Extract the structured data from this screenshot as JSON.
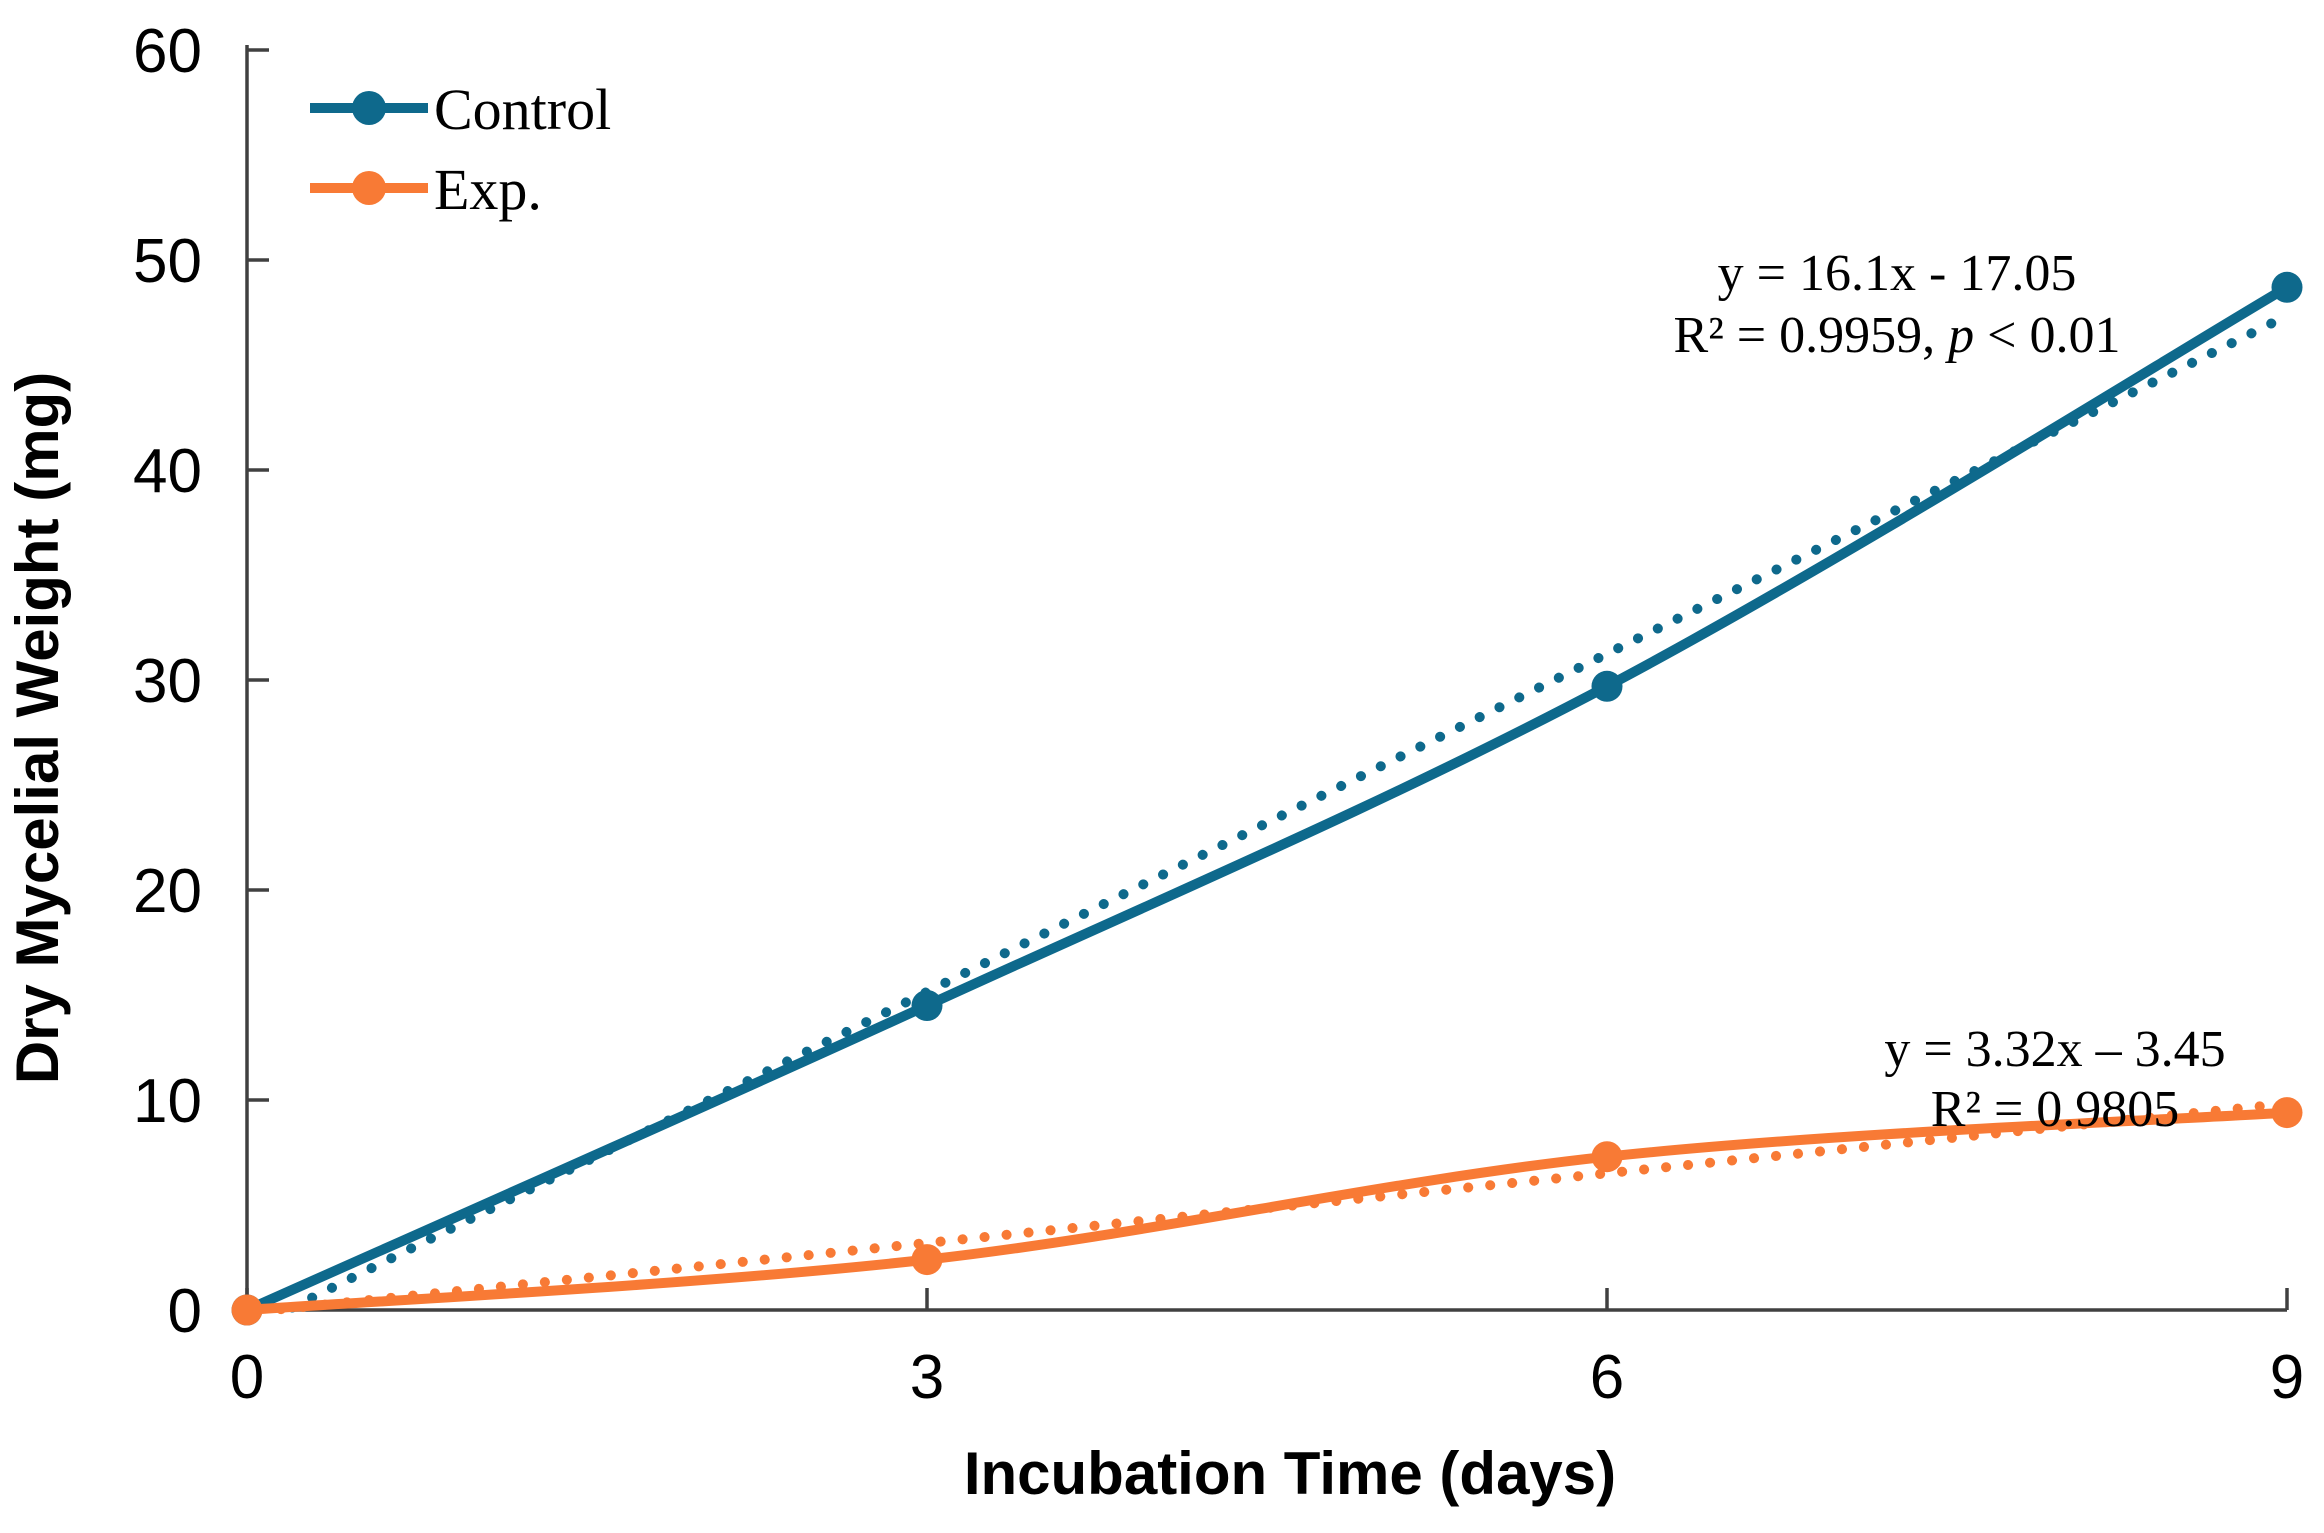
{
  "chart_data": {
    "type": "line",
    "title": "",
    "xlabel": "Incubation Time (days)",
    "ylabel": "Dry Mycelial Weight (mg)",
    "x": [
      0,
      3,
      6,
      9
    ],
    "x_ticks": [
      0,
      3,
      6,
      9
    ],
    "y_ticks": [
      0,
      10,
      20,
      30,
      40,
      50,
      60
    ],
    "xlim": [
      0,
      9
    ],
    "ylim": [
      0,
      60
    ],
    "grid": false,
    "legend_position": "top-left",
    "axis_color": "#404040",
    "series": [
      {
        "name": "Control",
        "color": "#0E698C",
        "values": [
          0,
          14.5,
          29.7,
          48.7
        ],
        "trendline": {
          "style": "dotted",
          "equation_label": "y = 16.1x - 17.05",
          "r2_label": "R² = 0.9959, ",
          "p_label": "p",
          "p_value_label": " < 0.01",
          "start": {
            "x": 0.2,
            "y": 0.12
          },
          "end": {
            "x": 9,
            "y": 47.35
          }
        }
      },
      {
        "name": "Exp.",
        "color": "#F87A35",
        "values": [
          0,
          2.4,
          7.3,
          9.4
        ],
        "trendline": {
          "style": "dotted",
          "equation_label": "y = 3.32x – 3.45",
          "r2_label": "R² = 0.9805",
          "p_label": "",
          "p_value_label": "",
          "start": {
            "x": 0.15,
            "y": 0.04
          },
          "end": {
            "x": 9,
            "y": 9.83
          }
        }
      }
    ]
  }
}
